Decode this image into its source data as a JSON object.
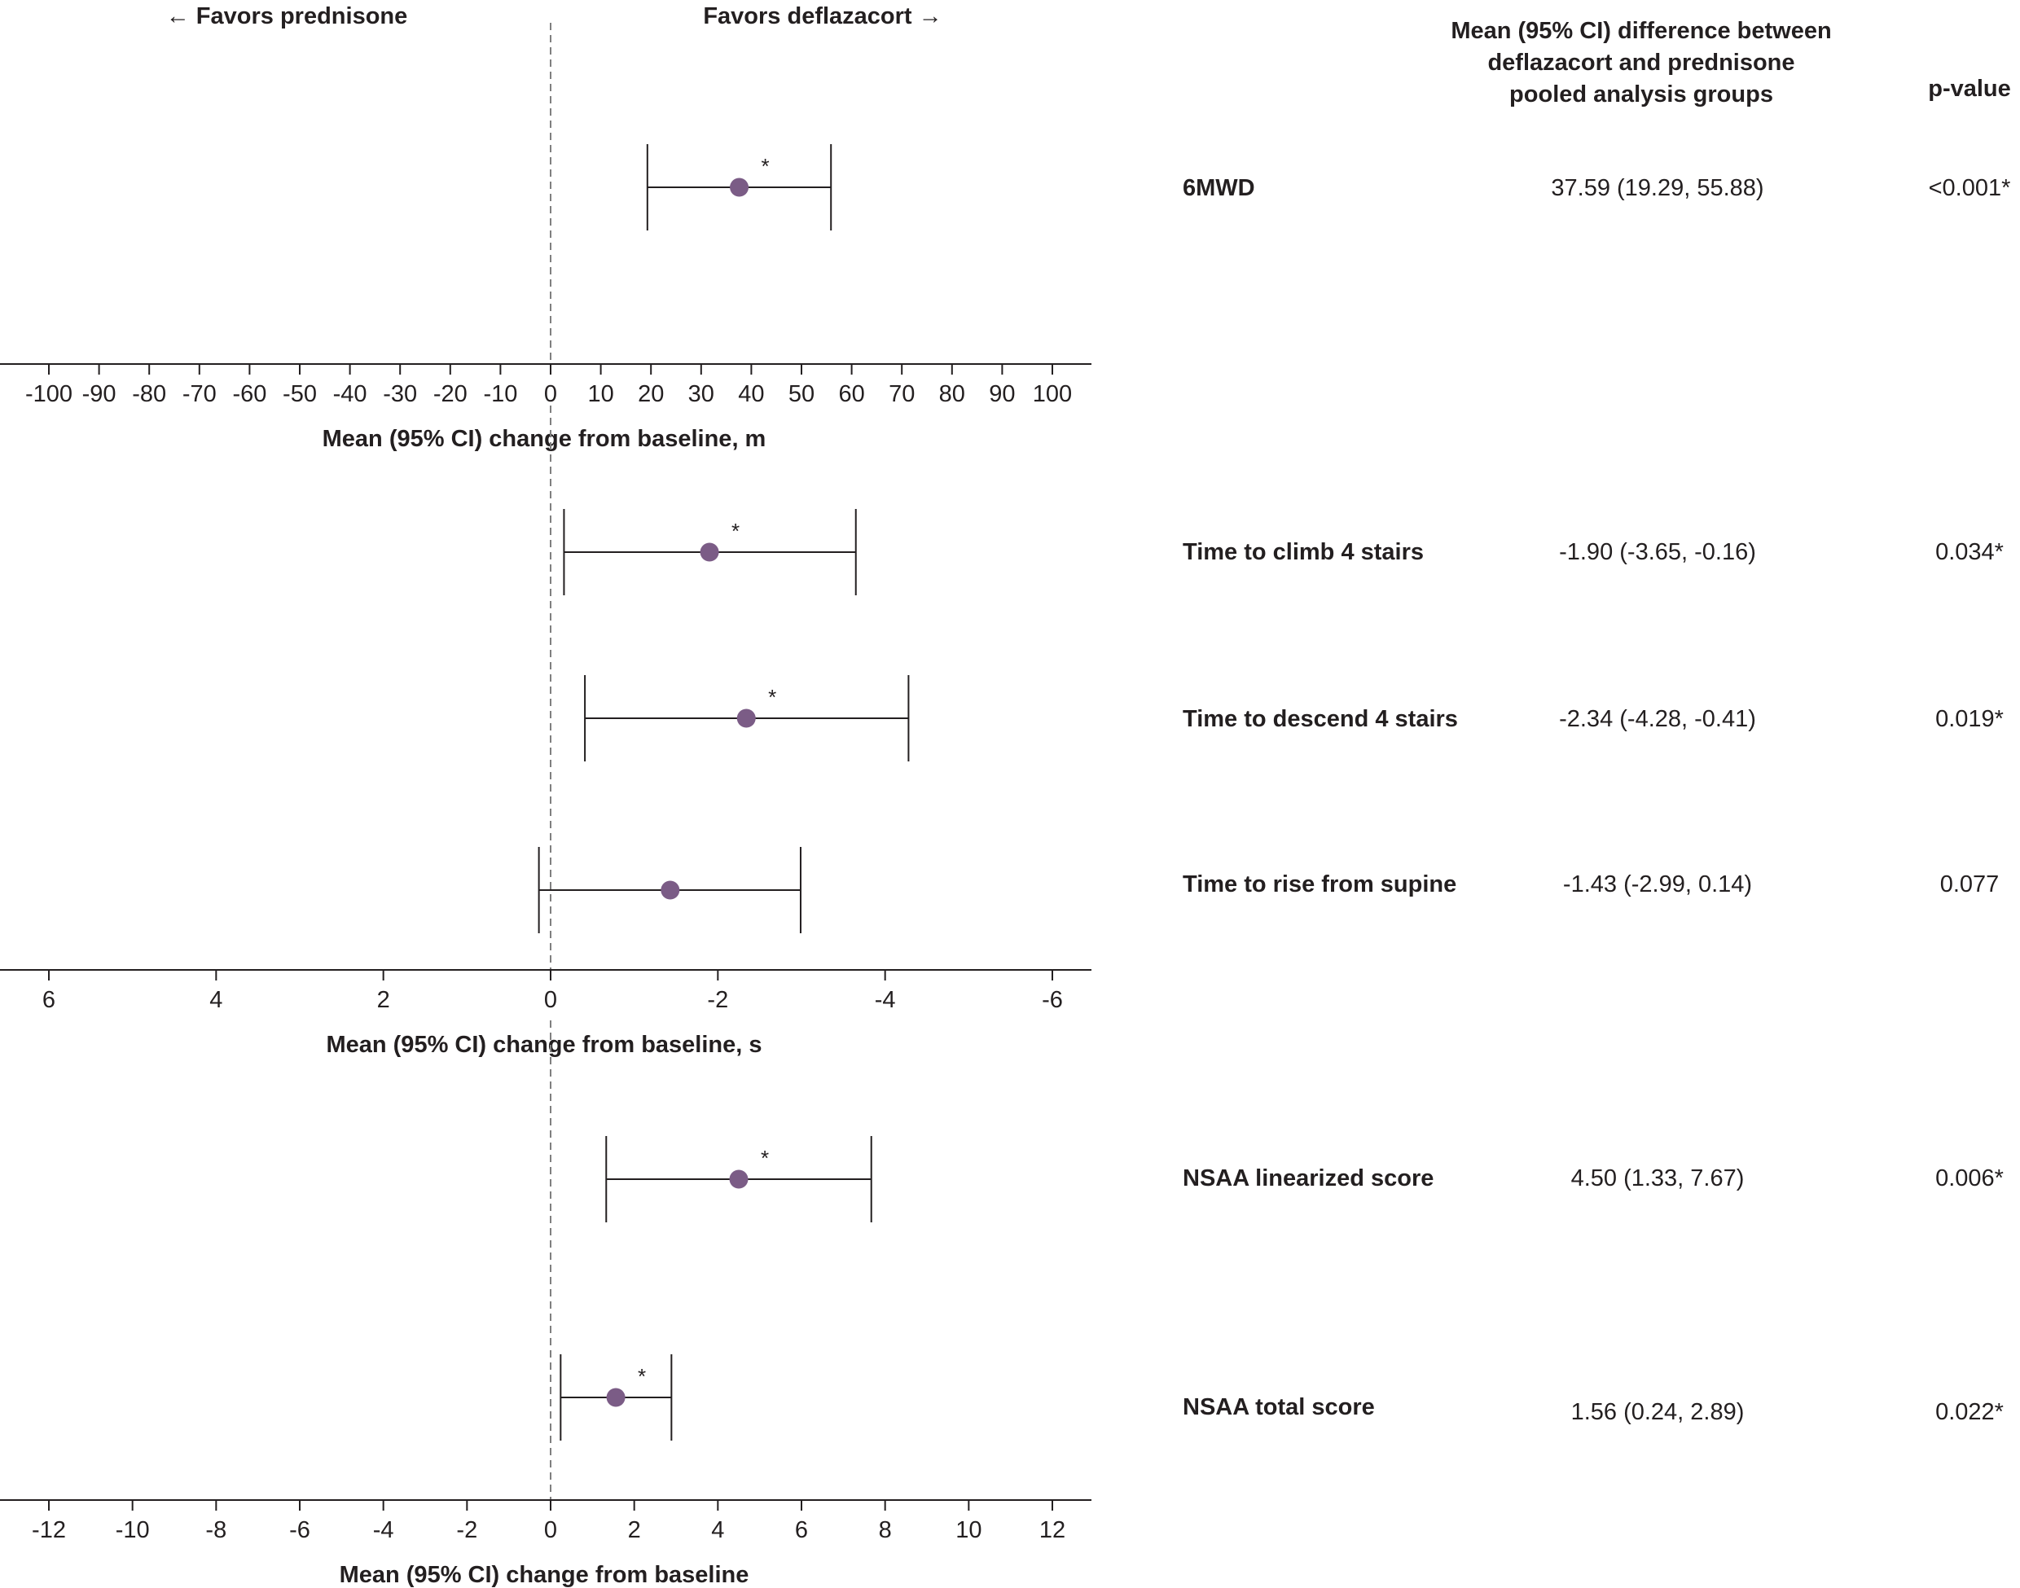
{
  "direction_labels": {
    "left": "← Favors prednisone",
    "right": "Favors deflazacort →"
  },
  "table_header": {
    "ci_lines": [
      "Mean (95% CI) difference between",
      "deflazacort and prednisone",
      "pooled analysis groups"
    ],
    "pvalue": "p-value"
  },
  "colors": {
    "point": "#7b5c86",
    "axis": "#231f20",
    "reference_line": "#7f7f7f"
  },
  "chart_data": [
    {
      "type": "forest",
      "panel": "distance",
      "xlabel": "Mean (95% CI) change from baseline, m",
      "xlim": [
        -110,
        110
      ],
      "reversed": false,
      "ticks": [
        -100,
        -90,
        -80,
        -70,
        -60,
        -50,
        -40,
        -30,
        -20,
        -10,
        0,
        10,
        20,
        30,
        40,
        50,
        60,
        70,
        80,
        90,
        100
      ],
      "rows": [
        {
          "label": "6MWD",
          "mean": 37.59,
          "lower": 19.29,
          "upper": 55.88,
          "ci_text": "37.59 (19.29, 55.88)",
          "p_value": "<0.001*",
          "significant": true
        }
      ]
    },
    {
      "type": "forest",
      "panel": "timed",
      "xlabel": "Mean (95% CI) change from baseline, s",
      "xlim": [
        6.6,
        -6.6
      ],
      "reversed": true,
      "ticks": [
        6,
        4,
        2,
        0,
        -2,
        -4,
        -6
      ],
      "rows": [
        {
          "label": "Time to climb 4 stairs",
          "mean": -1.9,
          "lower": -3.65,
          "upper": -0.16,
          "ci_text": "-1.90 (-3.65, -0.16)",
          "p_value": "0.034*",
          "significant": true
        },
        {
          "label": "Time to descend 4 stairs",
          "mean": -2.34,
          "lower": -4.28,
          "upper": -0.41,
          "ci_text": "-2.34 (-4.28, -0.41)",
          "p_value": "0.019*",
          "significant": true
        },
        {
          "label": "Time to rise from supine",
          "mean": -1.43,
          "lower": -2.99,
          "upper": 0.14,
          "ci_text": "-1.43 (-2.99, 0.14)",
          "p_value": "0.077",
          "significant": false
        }
      ]
    },
    {
      "type": "forest",
      "panel": "nsaa",
      "xlabel": "Mean (95% CI) change from baseline",
      "xlim": [
        -13.2,
        13.2
      ],
      "reversed": false,
      "ticks": [
        -12,
        -10,
        -8,
        -6,
        -4,
        -2,
        0,
        2,
        4,
        6,
        8,
        10,
        12
      ],
      "rows": [
        {
          "label": "NSAA linearized score",
          "mean": 4.5,
          "lower": 1.33,
          "upper": 7.67,
          "ci_text": "4.50 (1.33, 7.67)",
          "p_value": "0.006*",
          "significant": true
        },
        {
          "label": "NSAA total score",
          "mean": 1.56,
          "lower": 0.24,
          "upper": 2.89,
          "ci_text": "1.56 (0.24, 2.89)",
          "p_value": "0.022*",
          "significant": true
        }
      ]
    }
  ]
}
